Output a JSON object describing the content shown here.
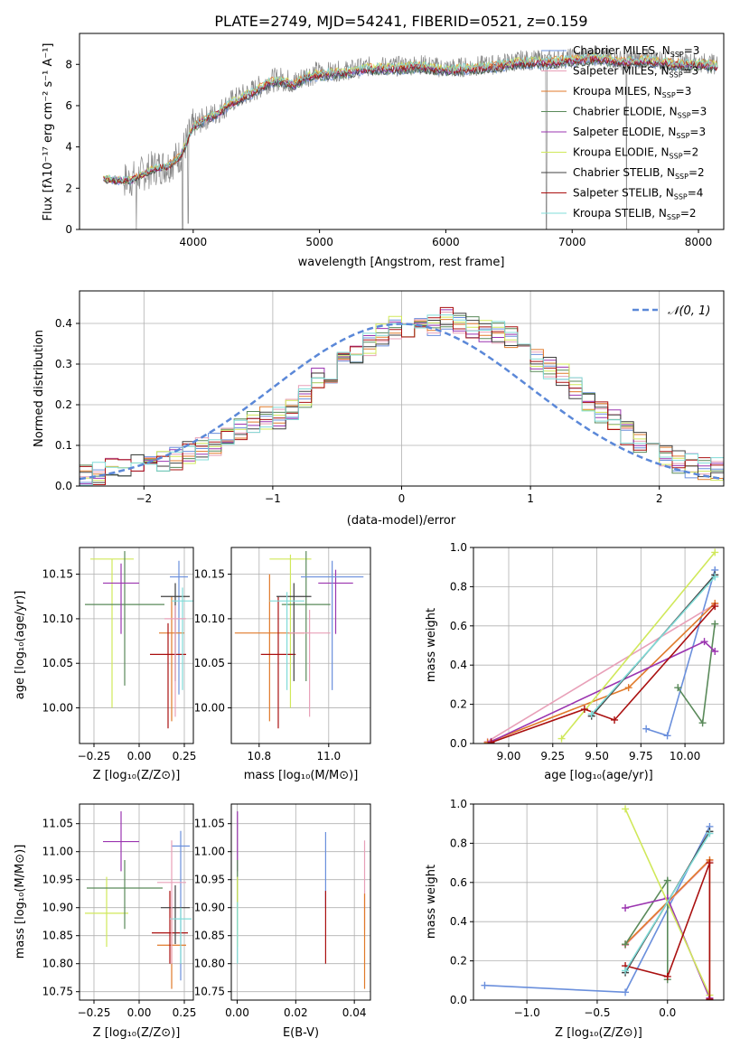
{
  "colors": {
    "chabrier_miles": "#6a8fdc",
    "salpeter_miles": "#e8a0b8",
    "kroupa_miles": "#e07a2a",
    "chabrier_elodie": "#5a8a5a",
    "salpeter_elodie": "#9b35b0",
    "kroupa_elodie": "#d0e85a",
    "chabrier_stelib": "#404040",
    "salpeter_stelib": "#aa1010",
    "kroupa_stelib": "#80dcd8",
    "observed": "#888888",
    "normal_curve": "#5b88d8"
  },
  "chart_data": [
    {
      "id": "spectrum",
      "type": "line",
      "title": "PLATE=2749, MJD=54241, FIBERID=0521, z=0.159",
      "xlabel": "wavelength [Angstrom, rest frame]",
      "ylabel": "Flux [fλ10⁻¹⁷ erg cm⁻² s⁻¹ A⁻¹]",
      "xlim": [
        3100,
        8200
      ],
      "ylim": [
        0,
        9.5
      ],
      "xticks": [
        4000,
        5000,
        6000,
        7000,
        8000
      ],
      "yticks": [
        0,
        2,
        4,
        6,
        8
      ],
      "grid": false,
      "legend_position": "top-right",
      "legend": [
        {
          "label": "Chabrier MILES, N",
          "sub": "SSP",
          "suffix": "=3",
          "color_key": "chabrier_miles"
        },
        {
          "label": "Salpeter MILES, N",
          "sub": "SSP",
          "suffix": "=3",
          "color_key": "salpeter_miles"
        },
        {
          "label": "Kroupa MILES, N",
          "sub": "SSP",
          "suffix": "=3",
          "color_key": "kroupa_miles"
        },
        {
          "label": "Chabrier ELODIE, N",
          "sub": "SSP",
          "suffix": "=3",
          "color_key": "chabrier_elodie"
        },
        {
          "label": "Salpeter ELODIE, N",
          "sub": "SSP",
          "suffix": "=3",
          "color_key": "salpeter_elodie"
        },
        {
          "label": "Kroupa ELODIE, N",
          "sub": "SSP",
          "suffix": "=2",
          "color_key": "kroupa_elodie"
        },
        {
          "label": "Chabrier STELIB, N",
          "sub": "SSP",
          "suffix": "=2",
          "color_key": "chabrier_stelib"
        },
        {
          "label": "Salpeter STELIB, N",
          "sub": "SSP",
          "suffix": "=4",
          "color_key": "salpeter_stelib"
        },
        {
          "label": "Kroupa STELIB, N",
          "sub": "SSP",
          "suffix": "=2",
          "color_key": "kroupa_stelib"
        }
      ],
      "continuum_x": [
        3290,
        3400,
        3500,
        3600,
        3700,
        3800,
        3900,
        4000,
        4100,
        4200,
        4300,
        4400,
        4500,
        4600,
        4700,
        4800,
        4900,
        5000,
        5200,
        5400,
        5600,
        5800,
        6000,
        6200,
        6400,
        6600,
        6800,
        7000,
        7200,
        7400,
        7600,
        7800,
        8000,
        8150
      ],
      "continuum_y": [
        2.5,
        2.4,
        2.4,
        2.7,
        3.0,
        3.1,
        3.6,
        5.0,
        5.4,
        5.7,
        6.2,
        6.5,
        6.8,
        7.2,
        7.3,
        7.1,
        7.5,
        7.6,
        7.7,
        7.9,
        7.9,
        8.0,
        7.8,
        7.9,
        8.0,
        8.2,
        8.2,
        8.3,
        8.4,
        8.2,
        8.3,
        8.1,
        8.1,
        8.0
      ],
      "dips": [
        {
          "x": 3550,
          "y": 0
        },
        {
          "x": 3915,
          "y": 0
        },
        {
          "x": 3960,
          "y": 0.3
        },
        {
          "x": 6795,
          "y": 0
        },
        {
          "x": 7430,
          "y": 0
        }
      ]
    },
    {
      "id": "residuals",
      "type": "histogram",
      "xlabel": "(data-model)/error",
      "ylabel": "Normed distribution",
      "xlim": [
        -2.5,
        2.5
      ],
      "ylim": [
        0,
        0.48
      ],
      "xticks": [
        -2,
        -1,
        0,
        1,
        2
      ],
      "yticks": [
        0.0,
        0.1,
        0.2,
        0.3,
        0.4
      ],
      "grid": true,
      "legend_position": "top-right",
      "normal_label": "N(0,1)",
      "bin_width": 0.1,
      "bin_start": -2.5,
      "base_density": [
        0.03,
        0.03,
        0.04,
        0.04,
        0.05,
        0.06,
        0.06,
        0.07,
        0.08,
        0.09,
        0.1,
        0.12,
        0.14,
        0.16,
        0.17,
        0.17,
        0.19,
        0.22,
        0.26,
        0.28,
        0.31,
        0.33,
        0.35,
        0.37,
        0.39,
        0.39,
        0.4,
        0.4,
        0.41,
        0.4,
        0.39,
        0.38,
        0.38,
        0.37,
        0.34,
        0.31,
        0.29,
        0.27,
        0.24,
        0.21,
        0.18,
        0.16,
        0.13,
        0.11,
        0.09,
        0.07,
        0.06,
        0.05,
        0.04,
        0.04
      ]
    },
    {
      "id": "age_vs_Z",
      "type": "scatter",
      "xlabel": "Z [log₁₀(Z/Z⊙)]",
      "ylabel": "age  [log₁₀(age/yr)]",
      "xlim": [
        -0.33,
        0.3
      ],
      "ylim": [
        9.96,
        10.18
      ],
      "xticks": [
        -0.25,
        0.0,
        0.25
      ],
      "xtick_labels": [
        "−0.25",
        "0.00",
        "0.25"
      ],
      "yticks": [
        10.0,
        10.05,
        10.1,
        10.15
      ],
      "ytick_labels": [
        "10.00",
        "10.05",
        "10.10",
        "10.15"
      ],
      "points": [
        {
          "key": "kroupa_elodie",
          "x": -0.15,
          "xerr": 0.12,
          "y": 10.167,
          "ylo": 10.0,
          "yhi": 10.167
        },
        {
          "key": "chabrier_elodie",
          "x": -0.08,
          "xerr": 0.22,
          "y": 10.116,
          "ylo": 10.025,
          "yhi": 10.176
        },
        {
          "key": "salpeter_elodie",
          "x": -0.1,
          "xerr": 0.1,
          "y": 10.14,
          "ylo": 10.083,
          "yhi": 10.162
        },
        {
          "key": "chabrier_miles",
          "x": 0.22,
          "xerr": 0.05,
          "y": 10.147,
          "ylo": 10.015,
          "yhi": 10.165
        },
        {
          "key": "kroupa_miles",
          "x": 0.18,
          "xerr": 0.07,
          "y": 10.084,
          "ylo": 9.985,
          "yhi": 10.125
        },
        {
          "key": "salpeter_stelib",
          "x": 0.16,
          "xerr": 0.1,
          "y": 10.06,
          "ylo": 9.977,
          "yhi": 10.095
        },
        {
          "key": "chabrier_stelib",
          "x": 0.2,
          "xerr": 0.08,
          "y": 10.125,
          "ylo": 10.03,
          "yhi": 10.14
        },
        {
          "key": "kroupa_stelib",
          "x": 0.24,
          "xerr": 0.06,
          "y": 10.12,
          "ylo": 10.02,
          "yhi": 10.135
        },
        {
          "key": "salpeter_miles",
          "x": 0.2,
          "xerr": 0.06,
          "y": 10.1,
          "ylo": 9.99,
          "yhi": 10.115
        }
      ]
    },
    {
      "id": "age_vs_mass",
      "type": "scatter",
      "xlabel": "mass [log₁₀(M/M⊙)]",
      "ylabel": "",
      "xlim": [
        10.72,
        11.12
      ],
      "ylim": [
        9.96,
        10.18
      ],
      "xticks": [
        10.8,
        11.0
      ],
      "xtick_labels": [
        "10.8",
        "11.0"
      ],
      "yticks": [
        10.0,
        10.05,
        10.1,
        10.15
      ],
      "ytick_labels": [
        "10.00",
        "10.05",
        "10.10",
        "10.15"
      ],
      "points": [
        {
          "key": "kroupa_elodie",
          "x": 10.89,
          "xerr": 0.06,
          "y": 10.167,
          "ylo": 10.0,
          "yhi": 10.172
        },
        {
          "key": "chabrier_elodie",
          "x": 10.935,
          "xerr": 0.07,
          "y": 10.116,
          "ylo": 10.03,
          "yhi": 10.176
        },
        {
          "key": "salpeter_elodie",
          "x": 11.02,
          "xerr": 0.05,
          "y": 10.14,
          "ylo": 10.083,
          "yhi": 10.155
        },
        {
          "key": "chabrier_miles",
          "x": 11.01,
          "xerr": 0.09,
          "y": 10.147,
          "ylo": 10.02,
          "yhi": 10.165
        },
        {
          "key": "kroupa_miles",
          "x": 10.83,
          "xerr": 0.1,
          "y": 10.084,
          "ylo": 9.985,
          "yhi": 10.15
        },
        {
          "key": "salpeter_stelib",
          "x": 10.855,
          "xerr": 0.05,
          "y": 10.06,
          "ylo": 9.977,
          "yhi": 10.125
        },
        {
          "key": "chabrier_stelib",
          "x": 10.9,
          "xerr": 0.05,
          "y": 10.125,
          "ylo": 10.03,
          "yhi": 10.14
        },
        {
          "key": "kroupa_stelib",
          "x": 10.88,
          "xerr": 0.05,
          "y": 10.12,
          "ylo": 10.02,
          "yhi": 10.13
        },
        {
          "key": "salpeter_miles",
          "x": 10.945,
          "xerr": 0.06,
          "y": 10.084,
          "ylo": 9.99,
          "yhi": 10.11
        }
      ]
    },
    {
      "id": "weight_vs_age",
      "type": "line",
      "xlabel": "age  [log₁₀(age/yr)]",
      "ylabel": "mass weight",
      "xlim": [
        8.8,
        10.22
      ],
      "ylim": [
        0,
        1.0
      ],
      "xticks": [
        9.0,
        9.25,
        9.5,
        9.75,
        10.0
      ],
      "xtick_labels": [
        "9.00",
        "9.25",
        "9.50",
        "9.75",
        "10.00"
      ],
      "yticks": [
        0.0,
        0.2,
        0.4,
        0.6,
        0.8,
        1.0
      ],
      "ytick_labels": [
        "0.0",
        "0.2",
        "0.4",
        "0.6",
        "0.8",
        "1.0"
      ],
      "grid": true,
      "series": [
        {
          "key": "chabrier_miles",
          "x": [
            9.78,
            9.9,
            10.17
          ],
          "y": [
            0.075,
            0.04,
            0.885
          ]
        },
        {
          "key": "salpeter_miles",
          "x": [
            8.88,
            10.17
          ],
          "y": [
            0.01,
            0.71
          ]
        },
        {
          "key": "kroupa_miles",
          "x": [
            8.88,
            9.68,
            10.17
          ],
          "y": [
            0.005,
            0.285,
            0.715
          ]
        },
        {
          "key": "chabrier_elodie",
          "x": [
            9.96,
            10.1,
            10.17
          ],
          "y": [
            0.285,
            0.105,
            0.61
          ]
        },
        {
          "key": "salpeter_elodie",
          "x": [
            8.9,
            10.11,
            10.17
          ],
          "y": [
            0.01,
            0.52,
            0.47
          ]
        },
        {
          "key": "kroupa_elodie",
          "x": [
            9.3,
            10.17
          ],
          "y": [
            0.025,
            0.975
          ]
        },
        {
          "key": "chabrier_stelib",
          "x": [
            9.47,
            10.17
          ],
          "y": [
            0.14,
            0.86
          ]
        },
        {
          "key": "salpeter_stelib",
          "x": [
            8.9,
            9.43,
            9.6,
            10.17
          ],
          "y": [
            0.005,
            0.175,
            0.12,
            0.7
          ]
        },
        {
          "key": "kroupa_stelib",
          "x": [
            9.47,
            10.17
          ],
          "y": [
            0.15,
            0.85
          ]
        }
      ]
    },
    {
      "id": "mass_vs_Z",
      "type": "scatter",
      "xlabel": "Z [log₁₀(Z/Z⊙)]",
      "ylabel": "mass [log₁₀(M/M⊙)]",
      "xlim": [
        -0.33,
        0.3
      ],
      "ylim": [
        10.735,
        11.085
      ],
      "xticks": [
        -0.25,
        0.0,
        0.25
      ],
      "xtick_labels": [
        "−0.25",
        "0.00",
        "0.25"
      ],
      "yticks": [
        10.75,
        10.8,
        10.85,
        10.9,
        10.95,
        11.0,
        11.05
      ],
      "ytick_labels": [
        "10.75",
        "10.80",
        "10.85",
        "10.90",
        "10.95",
        "11.00",
        "11.05"
      ],
      "points": [
        {
          "key": "kroupa_elodie",
          "x": -0.18,
          "xerr": 0.12,
          "y": 10.89,
          "ylo": 10.83,
          "yhi": 10.955
        },
        {
          "key": "chabrier_elodie",
          "x": -0.08,
          "xerr": 0.21,
          "y": 10.935,
          "ylo": 10.862,
          "yhi": 10.985
        },
        {
          "key": "salpeter_elodie",
          "x": -0.1,
          "xerr": 0.1,
          "y": 11.018,
          "ylo": 10.965,
          "yhi": 11.072
        },
        {
          "key": "chabrier_miles",
          "x": 0.23,
          "xerr": 0.05,
          "y": 11.01,
          "ylo": 10.77,
          "yhi": 11.037
        },
        {
          "key": "kroupa_miles",
          "x": 0.18,
          "xerr": 0.08,
          "y": 10.833,
          "ylo": 10.755,
          "yhi": 10.9
        },
        {
          "key": "salpeter_stelib",
          "x": 0.17,
          "xerr": 0.1,
          "y": 10.855,
          "ylo": 10.8,
          "yhi": 10.93
        },
        {
          "key": "chabrier_stelib",
          "x": 0.2,
          "xerr": 0.08,
          "y": 10.9,
          "ylo": 10.835,
          "yhi": 10.94
        },
        {
          "key": "kroupa_stelib",
          "x": 0.23,
          "xerr": 0.06,
          "y": 10.88,
          "ylo": 10.8,
          "yhi": 10.9
        },
        {
          "key": "salpeter_miles",
          "x": 0.18,
          "xerr": 0.08,
          "y": 10.945,
          "ylo": 10.8,
          "yhi": 11.02
        }
      ]
    },
    {
      "id": "mass_vs_ebv",
      "type": "scatter",
      "xlabel": "E(B-V)",
      "ylabel": "",
      "xlim": [
        -0.002,
        0.0455
      ],
      "ylim": [
        10.735,
        11.085
      ],
      "xticks": [
        0.0,
        0.02,
        0.04
      ],
      "xtick_labels": [
        "0.00",
        "0.02",
        "0.04"
      ],
      "yticks": [
        10.75,
        10.8,
        10.85,
        10.9,
        10.95,
        11.0,
        11.05
      ],
      "ytick_labels": [
        "10.75",
        "10.80",
        "10.85",
        "10.90",
        "10.95",
        "11.00",
        "11.05"
      ],
      "points": [
        {
          "key": "salpeter_elodie",
          "x": 0.0001,
          "xerr": 0,
          "y": 11.018,
          "ylo": 10.965,
          "yhi": 11.072
        },
        {
          "key": "chabrier_elodie",
          "x": 0.0001,
          "xerr": 0,
          "y": 10.935,
          "ylo": 10.86,
          "yhi": 10.985
        },
        {
          "key": "kroupa_elodie",
          "x": 0.0001,
          "xerr": 0,
          "y": 10.89,
          "ylo": 10.83,
          "yhi": 10.955
        },
        {
          "key": "kroupa_stelib",
          "x": 0.0001,
          "xerr": 0,
          "y": 10.88,
          "ylo": 10.8,
          "yhi": 10.91
        },
        {
          "key": "chabrier_miles",
          "x": 0.0302,
          "xerr": 0,
          "y": 11.01,
          "ylo": 10.9,
          "yhi": 11.035
        },
        {
          "key": "salpeter_stelib",
          "x": 0.0302,
          "xerr": 0,
          "y": 10.855,
          "ylo": 10.8,
          "yhi": 10.93
        },
        {
          "key": "salpeter_miles",
          "x": 0.0435,
          "xerr": 0,
          "y": 10.945,
          "ylo": 10.86,
          "yhi": 11.02
        },
        {
          "key": "kroupa_miles",
          "x": 0.0435,
          "xerr": 0,
          "y": 10.833,
          "ylo": 10.755,
          "yhi": 10.925
        }
      ]
    },
    {
      "id": "weight_vs_Z",
      "type": "line",
      "xlabel": "Z [log₁₀(Z/Z⊙)]",
      "ylabel": "mass weight",
      "xlim": [
        -1.38,
        0.4
      ],
      "ylim": [
        0,
        1.0
      ],
      "xticks": [
        -1.0,
        -0.5,
        0.0
      ],
      "xtick_labels": [
        "−1.0",
        "−0.5",
        "0.0"
      ],
      "yticks": [
        0.0,
        0.2,
        0.4,
        0.6,
        0.8,
        1.0
      ],
      "ytick_labels": [
        "0.0",
        "0.2",
        "0.4",
        "0.6",
        "0.8",
        "1.0"
      ],
      "grid": true,
      "series": [
        {
          "key": "chabrier_miles",
          "x": [
            -1.3,
            -0.3,
            0.3
          ],
          "y": [
            0.075,
            0.04,
            0.885
          ]
        },
        {
          "key": "salpeter_miles",
          "x": [
            -0.3,
            0.3
          ],
          "y": [
            0.28,
            0.71
          ]
        },
        {
          "key": "kroupa_miles",
          "x": [
            -0.3,
            0.3,
            0.3
          ],
          "y": [
            0.285,
            0.715,
            0.005
          ]
        },
        {
          "key": "chabrier_elodie",
          "x": [
            -0.3,
            0.0,
            0.0
          ],
          "y": [
            0.285,
            0.61,
            0.105
          ]
        },
        {
          "key": "salpeter_elodie",
          "x": [
            -0.3,
            0.0,
            0.3
          ],
          "y": [
            0.47,
            0.52,
            0.01
          ]
        },
        {
          "key": "kroupa_elodie",
          "x": [
            -0.3,
            0.3
          ],
          "y": [
            0.975,
            0.025
          ]
        },
        {
          "key": "chabrier_stelib",
          "x": [
            -0.3,
            0.3
          ],
          "y": [
            0.14,
            0.86
          ]
        },
        {
          "key": "salpeter_stelib",
          "x": [
            -0.3,
            0.0,
            0.3,
            0.3
          ],
          "y": [
            0.175,
            0.12,
            0.7,
            0.005
          ]
        },
        {
          "key": "kroupa_stelib",
          "x": [
            -0.3,
            0.3
          ],
          "y": [
            0.15,
            0.85
          ]
        }
      ]
    }
  ]
}
